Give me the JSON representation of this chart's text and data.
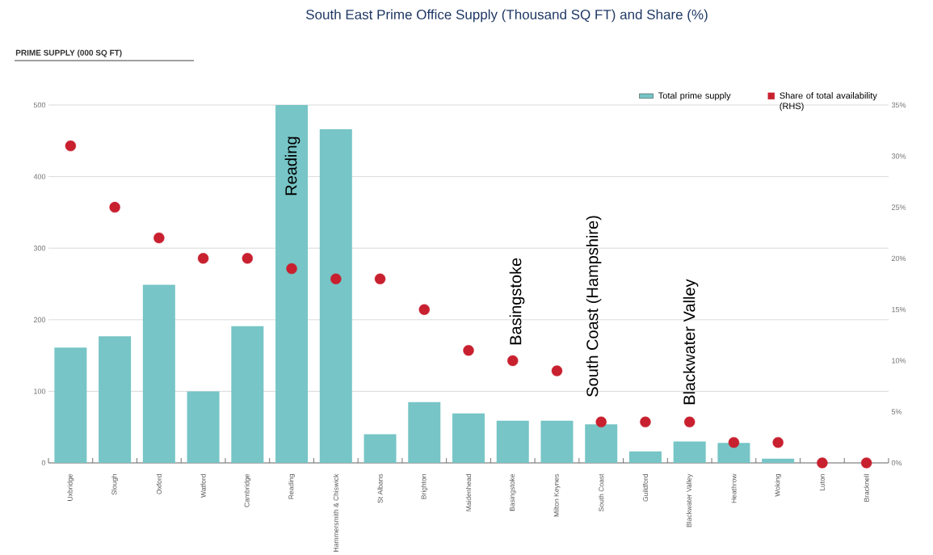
{
  "chart_data": {
    "type": "bar",
    "title": "South East Prime Office Supply (Thousand SQ FT) and Share (%)",
    "categories": [
      "Uxbridge",
      "Slough",
      "Oxford",
      "Watford",
      "Cambridge",
      "Reading",
      "Hammersmith & Chiswick",
      "St Albans",
      "Brighton",
      "Maidenhead",
      "Basingstoke",
      "Milton Keynes",
      "South Coast",
      "Guildford",
      "Blackwater Valley",
      "Heathrow",
      "Woking",
      "Luton",
      "Bracknell"
    ],
    "series": [
      {
        "name": "Total prime supply",
        "color": "#77c5c6",
        "values": [
          161,
          177,
          249,
          100,
          191,
          500,
          466,
          40,
          85,
          69,
          59,
          59,
          54,
          16,
          30,
          28,
          6,
          0,
          0
        ]
      },
      {
        "name": "Share of total availability (RHS)",
        "type": "scatter",
        "axis": "y2",
        "color": "#c8202f",
        "values": [
          31,
          25,
          22,
          20,
          20,
          19,
          18,
          18,
          15,
          11,
          10,
          9,
          4,
          4,
          4,
          2,
          2,
          0,
          0
        ]
      }
    ],
    "marker": "circle",
    "ylim": [
      0,
      500
    ],
    "yticks": [
      0,
      100,
      200,
      300,
      400,
      500
    ],
    "y2lim": [
      0,
      35
    ],
    "y2ticks": [
      {
        "value": 0,
        "label": "0%"
      },
      {
        "value": 5,
        "label": "5%"
      },
      {
        "value": 10,
        "label": "10%"
      },
      {
        "value": 15,
        "label": "15%"
      },
      {
        "value": 20,
        "label": "20%"
      },
      {
        "value": 25,
        "label": "25%"
      },
      {
        "value": 30,
        "label": "30%"
      },
      {
        "value": 35,
        "label": "35%"
      }
    ],
    "grid": "y",
    "legend": "top right",
    "annotations": [
      "PRIME SUPPLY (000 SQ FT)",
      "Reading",
      "Basingstoke",
      "South Coast (Hampshire)",
      "Blackwater Valley"
    ]
  }
}
